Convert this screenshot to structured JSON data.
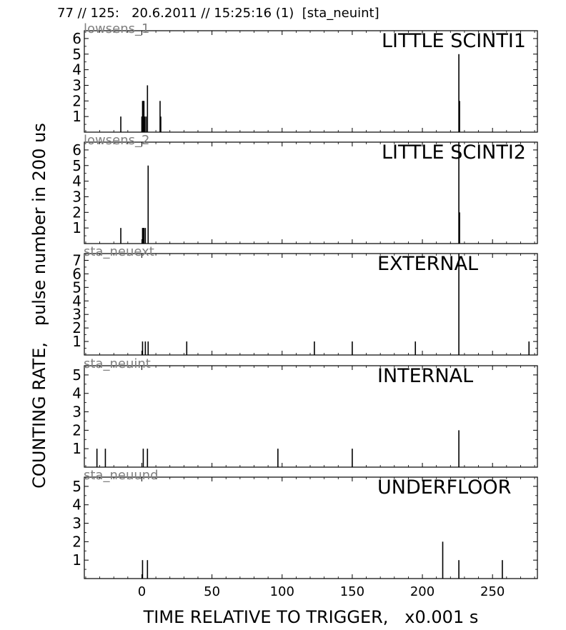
{
  "header": {
    "title": "77 // 125:   20.6.2011 // 15:25:16 (1)  [sta_neuint]"
  },
  "figure": {
    "ylabel": "COUNTING RATE,   pulse number in 200 us",
    "xlabel": "TIME RELATIVE TO TRIGGER,   x0.001 s",
    "line_color": "#000000",
    "sensor_label_color": "#808080"
  },
  "chart_data": [
    {
      "type": "bar",
      "sensor": "lowsens_1",
      "title": "LITTLE SCINTI1",
      "xlim": [
        -41,
        282
      ],
      "ylim": [
        0,
        6.5
      ],
      "xticks": [
        0,
        50,
        100,
        150,
        200,
        250
      ],
      "yticks": [
        1,
        2,
        3,
        4,
        5,
        6
      ],
      "show_xticklabels": false,
      "x": [
        -15,
        0,
        0.5,
        1,
        1.5,
        2,
        3,
        4,
        13,
        13.5,
        226,
        226.5
      ],
      "values": [
        1,
        1,
        2,
        2,
        2,
        1,
        1,
        3,
        2,
        1,
        5,
        2
      ]
    },
    {
      "type": "bar",
      "sensor": "lowsens_2",
      "title": "LITTLE SCINTI2",
      "xlim": [
        -41,
        282
      ],
      "ylim": [
        0,
        6.5
      ],
      "xticks": [
        0,
        50,
        100,
        150,
        200,
        250
      ],
      "yticks": [
        1,
        2,
        3,
        4,
        5,
        6
      ],
      "show_xticklabels": false,
      "x": [
        -15,
        0.5,
        1,
        1.5,
        2.5,
        4.5,
        226,
        226.5
      ],
      "values": [
        1,
        1,
        1,
        1,
        1,
        5,
        6.5,
        2
      ]
    },
    {
      "type": "bar",
      "sensor": "sta_neuext",
      "title": "EXTERNAL",
      "xlim": [
        -41,
        282
      ],
      "ylim": [
        0,
        7.5
      ],
      "xticks": [
        0,
        50,
        100,
        150,
        200,
        250
      ],
      "yticks": [
        1,
        2,
        3,
        4,
        5,
        6,
        7
      ],
      "show_xticklabels": false,
      "x": [
        0.5,
        2.5,
        4.5,
        32,
        123,
        150,
        195,
        226,
        276
      ],
      "values": [
        1,
        1,
        1,
        1,
        1,
        1,
        1,
        7.5,
        1
      ]
    },
    {
      "type": "bar",
      "sensor": "sta_neuint",
      "title": "INTERNAL",
      "xlim": [
        -41,
        282
      ],
      "ylim": [
        0,
        5.5
      ],
      "xticks": [
        0,
        50,
        100,
        150,
        200,
        250
      ],
      "yticks": [
        1,
        2,
        3,
        4,
        5
      ],
      "show_xticklabels": false,
      "x": [
        -32,
        -26,
        1,
        4,
        97,
        150,
        226
      ],
      "values": [
        1,
        1,
        1,
        1,
        1,
        1,
        2
      ]
    },
    {
      "type": "bar",
      "sensor": "sta_neuund",
      "title": "UNDERFLOOR",
      "xlim": [
        -41,
        282
      ],
      "ylim": [
        0,
        5.5
      ],
      "xticks": [
        0,
        50,
        100,
        150,
        200,
        250
      ],
      "yticks": [
        1,
        2,
        3,
        4,
        5
      ],
      "show_xticklabels": true,
      "x": [
        0.5,
        4,
        214.5,
        226,
        257
      ],
      "values": [
        1,
        1,
        2,
        1,
        1
      ]
    }
  ]
}
